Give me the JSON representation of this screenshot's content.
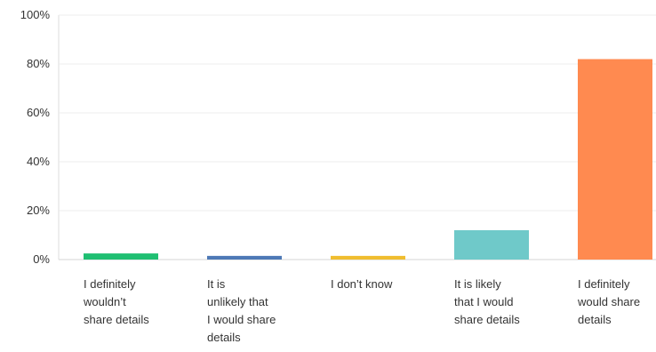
{
  "chart_data": {
    "type": "bar",
    "title": "",
    "xlabel": "",
    "ylabel": "",
    "ylim": [
      0,
      100
    ],
    "y_ticks": [
      "0%",
      "20%",
      "40%",
      "60%",
      "80%",
      "100%"
    ],
    "y_tick_values": [
      0,
      20,
      40,
      60,
      80,
      100
    ],
    "grid": true,
    "categories": [
      "I definitely wouldn’t share details",
      "It is unlikely that I would share details",
      "I don’t know",
      "It is likely that I would share details",
      "I definitely would share details"
    ],
    "category_label_lines": [
      [
        "I definitely",
        "wouldn’t",
        "share details"
      ],
      [
        "It is",
        "unlikely that",
        "I would share",
        "details"
      ],
      [
        "I don’t know"
      ],
      [
        "It is likely",
        "that I would",
        "share details"
      ],
      [
        "I definitely",
        "would share",
        "details"
      ]
    ],
    "values": [
      2.5,
      1.5,
      1.5,
      12,
      82
    ],
    "colors": [
      "#1fbf72",
      "#4e79b6",
      "#f0bd2f",
      "#6fc9c9",
      "#ff8a50"
    ]
  }
}
